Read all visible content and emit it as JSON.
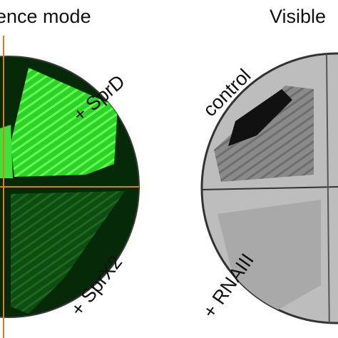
{
  "left_panel": {
    "title": "ence mode",
    "labels": [
      "+ SprD",
      "+ SprX2"
    ]
  },
  "right_panel": {
    "title": "Visible",
    "labels": [
      "control",
      "+ RNAIII"
    ]
  }
}
